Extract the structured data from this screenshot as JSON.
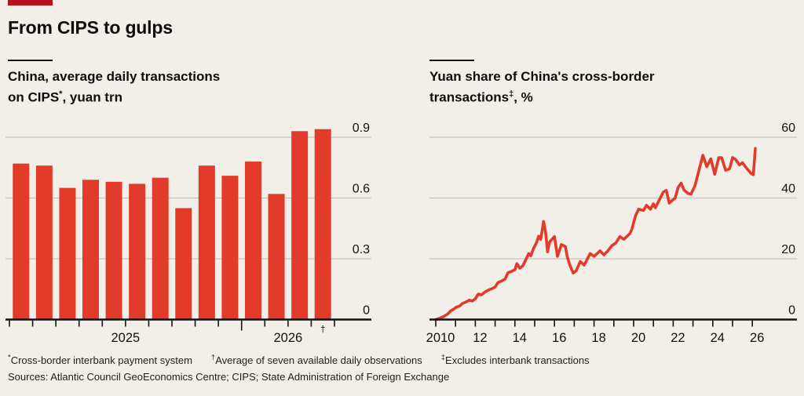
{
  "page": {
    "title": "From CIPS to gulps",
    "colors": {
      "background": "#f2efe8",
      "tag_red": "#b5121f",
      "chart_red": "#e23b2a",
      "gridline": "#c8c4ba",
      "axis": "#121212",
      "text": "#121212"
    }
  },
  "left_panel": {
    "subtitle_line1": "China, average daily transactions",
    "subtitle_line2_pre": "on CIPS",
    "subtitle_marker": "*",
    "subtitle_line2_post": ", yuan trn"
  },
  "right_panel": {
    "subtitle_line1": "Yuan share of China's cross-border",
    "subtitle_line2_pre": "transactions",
    "subtitle_marker": "‡",
    "subtitle_line2_post": ", %"
  },
  "footnotes": [
    {
      "marker": "*",
      "text": "Cross-border interbank payment system"
    },
    {
      "marker": "†",
      "text": "Average of seven available daily observations"
    },
    {
      "marker": "‡",
      "text": "Excludes interbank transactions"
    }
  ],
  "sources": "Sources: Atlantic Council GeoEconomics Centre; CIPS; State Administration of Foreign Exchange",
  "chart_data": [
    {
      "type": "bar",
      "title": "China, average daily transactions on CIPS*, yuan trn",
      "ylabel": "yuan trn",
      "values": [
        0.77,
        0.76,
        0.65,
        0.69,
        0.68,
        0.67,
        0.7,
        0.55,
        0.76,
        0.71,
        0.78,
        0.62,
        0.93,
        0.94
      ],
      "yticks": [
        0,
        0.3,
        0.6,
        0.9
      ],
      "ylim": [
        0,
        0.95
      ],
      "grid": true,
      "num_boundary_ticks": 15,
      "long_tick_index": 10,
      "x_year_labels": [
        {
          "label": "2025",
          "tick_index": 5
        },
        {
          "label": "2026",
          "tick_index": 12
        }
      ],
      "last_bar_footnote_marker": "†"
    },
    {
      "type": "line",
      "title": "Yuan share of China's cross-border transactions‡, %",
      "ylabel": "%",
      "yticks": [
        0,
        20,
        40,
        60
      ],
      "ylim": [
        0,
        60
      ],
      "xlim": [
        2009.7,
        2026.4
      ],
      "grid": true,
      "xticks": [
        {
          "year": 2010,
          "label": "2010"
        },
        {
          "year": 2011,
          "label": ""
        },
        {
          "year": 2012,
          "label": "12"
        },
        {
          "year": 2013,
          "label": ""
        },
        {
          "year": 2014,
          "label": "14"
        },
        {
          "year": 2015,
          "label": ""
        },
        {
          "year": 2016,
          "label": "16"
        },
        {
          "year": 2017,
          "label": ""
        },
        {
          "year": 2018,
          "label": "18"
        },
        {
          "year": 2019,
          "label": ""
        },
        {
          "year": 2020,
          "label": "20"
        },
        {
          "year": 2021,
          "label": ""
        },
        {
          "year": 2022,
          "label": "22"
        },
        {
          "year": 2023,
          "label": ""
        },
        {
          "year": 2024,
          "label": "24"
        },
        {
          "year": 2025,
          "label": ""
        },
        {
          "year": 2026,
          "label": "26"
        }
      ],
      "points": [
        [
          2010.0,
          0.0
        ],
        [
          2010.2,
          0.4
        ],
        [
          2010.4,
          1.0
        ],
        [
          2010.6,
          1.8
        ],
        [
          2010.75,
          2.8
        ],
        [
          2010.9,
          3.4
        ],
        [
          2011.05,
          4.1
        ],
        [
          2011.2,
          4.4
        ],
        [
          2011.35,
          5.3
        ],
        [
          2011.5,
          5.7
        ],
        [
          2011.7,
          6.4
        ],
        [
          2011.85,
          6.1
        ],
        [
          2012.0,
          6.8
        ],
        [
          2012.15,
          8.4
        ],
        [
          2012.3,
          8.1
        ],
        [
          2012.5,
          9.1
        ],
        [
          2012.7,
          9.8
        ],
        [
          2012.85,
          10.2
        ],
        [
          2013.0,
          10.7
        ],
        [
          2013.15,
          12.2
        ],
        [
          2013.3,
          12.6
        ],
        [
          2013.5,
          13.3
        ],
        [
          2013.65,
          15.4
        ],
        [
          2013.85,
          15.9
        ],
        [
          2014.0,
          16.4
        ],
        [
          2014.1,
          18.4
        ],
        [
          2014.25,
          16.9
        ],
        [
          2014.4,
          17.7
        ],
        [
          2014.55,
          19.7
        ],
        [
          2014.7,
          21.7
        ],
        [
          2014.8,
          21.0
        ],
        [
          2014.95,
          23.5
        ],
        [
          2015.1,
          25.4
        ],
        [
          2015.2,
          27.4
        ],
        [
          2015.3,
          26.4
        ],
        [
          2015.38,
          29.4
        ],
        [
          2015.45,
          32.3
        ],
        [
          2015.55,
          28.7
        ],
        [
          2015.65,
          22.3
        ],
        [
          2015.75,
          25.5
        ],
        [
          2016.0,
          27.3
        ],
        [
          2016.15,
          20.8
        ],
        [
          2016.35,
          24.7
        ],
        [
          2016.55,
          24.0
        ],
        [
          2016.65,
          20.5
        ],
        [
          2016.8,
          17.5
        ],
        [
          2016.95,
          15.3
        ],
        [
          2017.1,
          16.1
        ],
        [
          2017.3,
          19.1
        ],
        [
          2017.5,
          17.9
        ],
        [
          2017.8,
          21.7
        ],
        [
          2018.0,
          20.8
        ],
        [
          2018.3,
          22.6
        ],
        [
          2018.5,
          21.3
        ],
        [
          2018.7,
          22.6
        ],
        [
          2018.9,
          24.3
        ],
        [
          2019.1,
          25.2
        ],
        [
          2019.3,
          27.3
        ],
        [
          2019.5,
          26.4
        ],
        [
          2019.8,
          28.2
        ],
        [
          2019.9,
          29.5
        ],
        [
          2020.1,
          34.2
        ],
        [
          2020.25,
          36.3
        ],
        [
          2020.5,
          35.9
        ],
        [
          2020.65,
          37.6
        ],
        [
          2020.85,
          36.3
        ],
        [
          2021.0,
          38.1
        ],
        [
          2021.1,
          36.8
        ],
        [
          2021.3,
          39.4
        ],
        [
          2021.5,
          42.0
        ],
        [
          2021.65,
          42.5
        ],
        [
          2021.8,
          38.3
        ],
        [
          2021.95,
          39.2
        ],
        [
          2022.1,
          40.0
        ],
        [
          2022.25,
          43.5
        ],
        [
          2022.4,
          44.9
        ],
        [
          2022.55,
          42.6
        ],
        [
          2022.75,
          41.5
        ],
        [
          2022.9,
          41.3
        ],
        [
          2023.1,
          44.0
        ],
        [
          2023.25,
          47.8
        ],
        [
          2023.5,
          54.1
        ],
        [
          2023.7,
          50.3
        ],
        [
          2023.9,
          52.9
        ],
        [
          2024.1,
          47.8
        ],
        [
          2024.3,
          53.3
        ],
        [
          2024.45,
          53.3
        ],
        [
          2024.65,
          49.1
        ],
        [
          2024.85,
          49.6
        ],
        [
          2025.0,
          53.3
        ],
        [
          2025.15,
          52.7
        ],
        [
          2025.35,
          50.9
        ],
        [
          2025.5,
          51.6
        ],
        [
          2025.65,
          50.3
        ],
        [
          2025.8,
          49.1
        ],
        [
          2025.95,
          48.0
        ],
        [
          2026.05,
          47.7
        ],
        [
          2026.15,
          56.3
        ]
      ]
    }
  ]
}
